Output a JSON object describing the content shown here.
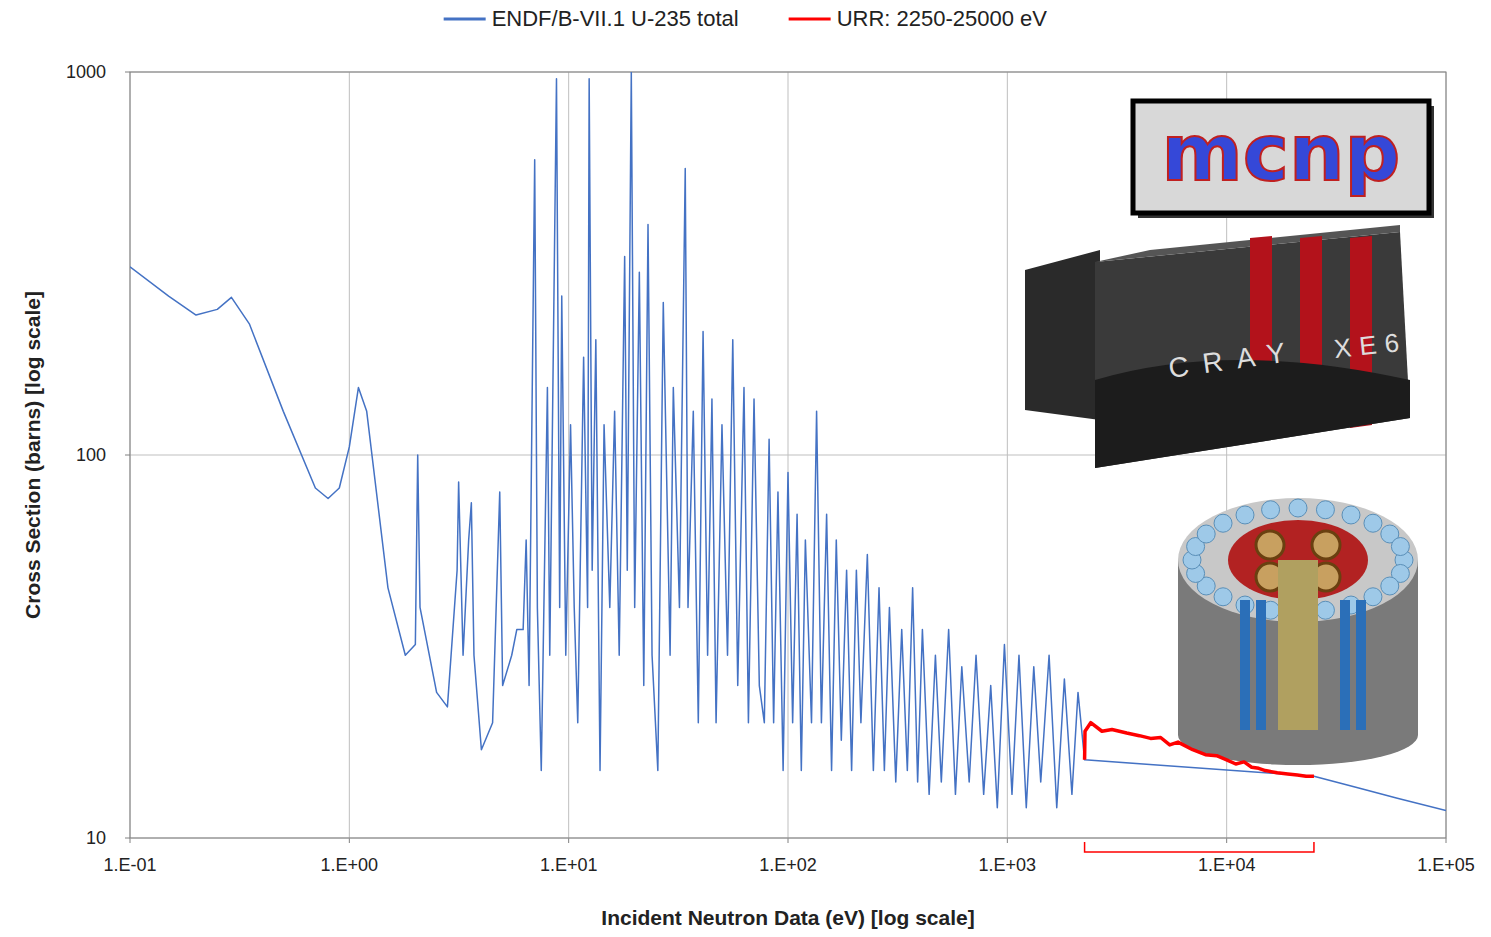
{
  "chart_data": {
    "type": "line",
    "x_label": "Incident Neutron Data (eV) [log scale]",
    "y_label": "Cross Section (barns) [log scale]",
    "annotations": [
      "mcnp",
      "CRAY",
      "XE6"
    ],
    "log": true,
    "grid": true,
    "legend": "top",
    "xlim": [
      0.1,
      100000
    ],
    "ylim": [
      10,
      1000
    ],
    "xticks": [
      {
        "value": 0.1,
        "label": "1.E-01"
      },
      {
        "value": 1,
        "label": "1.E+00"
      },
      {
        "value": 10,
        "label": "1.E+01"
      },
      {
        "value": 100,
        "label": "1.E+02"
      },
      {
        "value": 1000,
        "label": "1.E+03"
      },
      {
        "value": 10000,
        "label": "1.E+04"
      },
      {
        "value": 100000,
        "label": "1.E+05"
      }
    ],
    "yticks": [
      10,
      100,
      1000
    ],
    "series": [
      {
        "name": "ENDF/B-VII.1 U-235 total",
        "color": "#4472c4",
        "x": [
          0.1,
          0.15,
          0.2,
          0.25,
          0.29,
          0.35,
          0.5,
          0.7,
          0.8,
          0.9,
          1.0,
          1.1,
          1.2,
          1.5,
          1.8,
          2.0,
          2.05,
          2.1,
          2.5,
          2.8,
          3.1,
          3.15,
          3.3,
          3.5,
          3.6,
          3.7,
          4.0,
          4.5,
          4.85,
          5.0,
          5.5,
          5.8,
          6.2,
          6.4,
          6.6,
          7.0,
          7.2,
          7.5,
          8.0,
          8.2,
          8.8,
          9.1,
          9.3,
          9.7,
          10.2,
          10.6,
          11.0,
          11.7,
          12.2,
          12.4,
          12.8,
          13.3,
          13.9,
          14.5,
          15.4,
          16.2,
          17,
          18,
          18.5,
          19.3,
          20,
          21,
          22,
          23,
          24,
          25.5,
          27,
          29,
          30,
          32,
          34,
          35,
          37,
          39,
          41,
          43,
          45,
          47,
          50,
          53,
          56,
          59,
          63,
          66,
          70,
          74,
          78,
          82,
          86,
          90,
          95,
          100,
          105,
          110,
          115,
          120,
          128,
          135,
          142,
          150,
          158,
          166,
          175,
          185,
          195,
          205,
          215,
          230,
          245,
          260,
          275,
          290,
          310,
          330,
          350,
          370,
          390,
          410,
          440,
          470,
          500,
          540,
          580,
          620,
          670,
          720,
          780,
          840,
          900,
          970,
          1050,
          1130,
          1220,
          1320,
          1420,
          1550,
          1680,
          1820,
          1970,
          2100,
          2250,
          25000,
          40000,
          60000,
          100000
        ],
        "values": [
          310,
          260,
          232,
          240,
          258,
          220,
          130,
          82,
          77,
          82,
          105,
          150,
          130,
          45,
          30,
          32,
          100,
          40,
          24,
          22,
          50,
          85,
          30,
          60,
          75,
          30,
          17,
          20,
          80,
          25,
          30,
          35,
          35,
          60,
          25,
          590,
          40,
          15,
          150,
          30,
          960,
          40,
          260,
          30,
          120,
          40,
          20,
          180,
          40,
          960,
          50,
          200,
          15,
          120,
          40,
          130,
          30,
          330,
          50,
          1000,
          40,
          300,
          25,
          400,
          30,
          15,
          250,
          30,
          150,
          40,
          560,
          40,
          130,
          20,
          210,
          30,
          140,
          20,
          120,
          30,
          200,
          25,
          150,
          20,
          140,
          25,
          20,
          110,
          20,
          80,
          15,
          90,
          20,
          70,
          15,
          60,
          20,
          130,
          20,
          70,
          15,
          60,
          18,
          50,
          15,
          50,
          20,
          55,
          15,
          45,
          15,
          40,
          14,
          35,
          15,
          45,
          14,
          35,
          13,
          30,
          14,
          35,
          13,
          28,
          14,
          30,
          13,
          25,
          12,
          32,
          13,
          30,
          12,
          28,
          14,
          30,
          12,
          26,
          13,
          24,
          16,
          14.5,
          13.5,
          12.7,
          11.8
        ]
      },
      {
        "name": "URR: 2250-25000 eV",
        "color": "#ff0000",
        "x": [
          2250,
          2260,
          2400,
          2700,
          3000,
          3500,
          4000,
          4500,
          5000,
          5500,
          6000,
          7000,
          8000,
          9000,
          10000,
          11000,
          12000,
          13000,
          14000,
          15000,
          17000,
          19000,
          21000,
          23000,
          25000
        ],
        "values": [
          16,
          19,
          20,
          19,
          19.2,
          18.8,
          18.5,
          18.2,
          18.3,
          17.5,
          17.8,
          17.0,
          16.5,
          16.4,
          16.0,
          15.6,
          15.8,
          15.3,
          15.2,
          15.0,
          14.8,
          14.7,
          14.6,
          14.5,
          14.5
        ]
      }
    ]
  }
}
